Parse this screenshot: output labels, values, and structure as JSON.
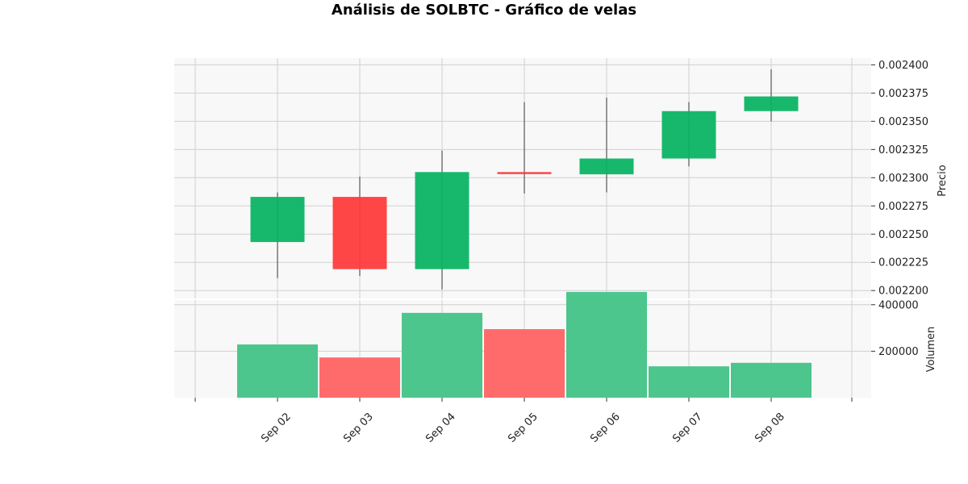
{
  "chart_data": {
    "type": "candlestick",
    "title": "Análisis de SOLBTC - Gráfico de velas",
    "categories": [
      "Sep 02",
      "Sep 03",
      "Sep 04",
      "Sep 05",
      "Sep 06",
      "Sep 07",
      "Sep 08"
    ],
    "price_panel": {
      "ylabel": "Precio",
      "ylim": [
        0.002193,
        0.002406
      ],
      "ticks": [
        "0.002200",
        "0.002225",
        "0.002250",
        "0.002275",
        "0.002300",
        "0.002325",
        "0.002350",
        "0.002375",
        "0.002400"
      ],
      "ohlc": [
        {
          "open": 0.002243,
          "high": 0.002287,
          "low": 0.002211,
          "close": 0.002283
        },
        {
          "open": 0.002283,
          "high": 0.002301,
          "low": 0.002213,
          "close": 0.002219
        },
        {
          "open": 0.002219,
          "high": 0.002324,
          "low": 0.002201,
          "close": 0.002305
        },
        {
          "open": 0.002305,
          "high": 0.002367,
          "low": 0.002286,
          "close": 0.002304
        },
        {
          "open": 0.002303,
          "high": 0.002371,
          "low": 0.002287,
          "close": 0.002317
        },
        {
          "open": 0.002317,
          "high": 0.002367,
          "low": 0.00231,
          "close": 0.002359
        },
        {
          "open": 0.002359,
          "high": 0.002396,
          "low": 0.00235,
          "close": 0.002372
        }
      ]
    },
    "volume_panel": {
      "ylabel": "Volumen",
      "ylim": [
        0,
        420000
      ],
      "ticks": [
        "200000",
        "400000"
      ],
      "values": [
        229000,
        173000,
        365000,
        295000,
        455000,
        135000,
        150000
      ]
    },
    "colors": {
      "up": "#0cb464",
      "down": "#ff3c3c",
      "volume_up": "#4cc68c",
      "volume_down": "#ff6b6b",
      "wick": "#555555",
      "panel_bg": "#f8f8f8",
      "grid": "#d0d0d0"
    },
    "grid": true
  }
}
